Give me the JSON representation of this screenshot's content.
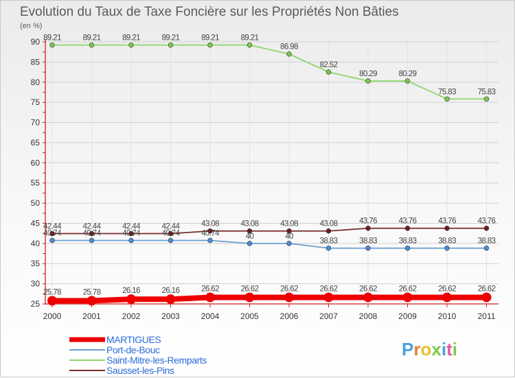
{
  "chart_data": {
    "type": "line",
    "title": "Evolution du Taux de Taxe Foncière sur les Propriétés Non Bâties",
    "ylabel": "(en %)",
    "xlabel": "",
    "x": [
      "2000",
      "2001",
      "2002",
      "2003",
      "2004",
      "2005",
      "2006",
      "2007",
      "2008",
      "2009",
      "2010",
      "2011"
    ],
    "yticks": [
      "25",
      "30",
      "35",
      "40",
      "45",
      "50",
      "55",
      "60",
      "65",
      "70",
      "75",
      "80",
      "85",
      "90"
    ],
    "ylim": [
      25,
      90
    ],
    "series": [
      {
        "name": "Saint-Mitre-les-Remparts",
        "color": "#8cd66a",
        "marker_color": "#7ac74f",
        "values": [
          89.21,
          89.21,
          89.21,
          89.21,
          89.21,
          89.21,
          86.98,
          82.52,
          80.29,
          80.29,
          75.83,
          75.83
        ],
        "labels": [
          "89.21",
          "89.21",
          "89.21",
          "89.21",
          "89.21",
          "89.21",
          "86.98",
          "82.52",
          "80.29",
          "80.29",
          "75.83",
          "75.83"
        ]
      },
      {
        "name": "Sausset-les-Pins",
        "color": "#7a2a2a",
        "marker_color": "#6b1f1f",
        "values": [
          42.44,
          42.44,
          42.44,
          42.44,
          43.08,
          43.08,
          43.08,
          43.08,
          43.76,
          43.76,
          43.76,
          43.76
        ],
        "labels": [
          "42.44",
          "42.44",
          "42.44",
          "42.44",
          "43.08",
          "43.08",
          "43.08",
          "43.08",
          "43.76",
          "43.76",
          "43.76",
          "43.76"
        ]
      },
      {
        "name": "Port-de-Bouc",
        "color": "#6a9fd0",
        "marker_color": "#4a8ed6",
        "values": [
          40.74,
          40.74,
          40.74,
          40.74,
          40.74,
          40,
          40,
          38.83,
          38.83,
          38.83,
          38.83,
          38.83
        ],
        "labels": [
          "40.74",
          "40.74",
          "40.74",
          "40.74",
          "40.74",
          "40",
          "40",
          "38.83",
          "38.83",
          "38.83",
          "38.83",
          "38.83"
        ]
      },
      {
        "name": "MARTIGUES",
        "color": "#ee0000",
        "marker_color": "#ee0000",
        "values": [
          25.78,
          25.78,
          26.16,
          26.16,
          26.62,
          26.62,
          26.62,
          26.62,
          26.62,
          26.62,
          26.62,
          26.62
        ],
        "labels": [
          "25.78",
          "25.78",
          "26.16",
          "26.16",
          "26.62",
          "26.62",
          "26.62",
          "26.62",
          "26.62",
          "26.62",
          "26.62",
          "26.62"
        ]
      }
    ],
    "legend": [
      "MARTIGUES",
      "Port-de-Bouc",
      "Saint-Mitre-les-Remparts",
      "Sausset-les-Pins"
    ],
    "legend_position": "bottom-left"
  },
  "logo": {
    "text": "Proxiti"
  }
}
